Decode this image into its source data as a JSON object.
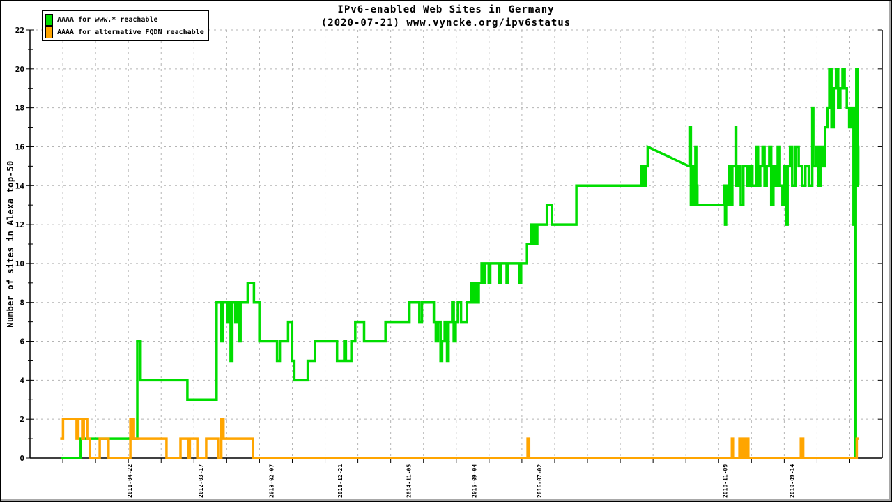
{
  "chart_data": {
    "type": "line",
    "title": "IPv6-enabled Web Sites in Germany",
    "subtitle": "(2020-07-21) www.vyncke.org/ipv6status",
    "ylabel": "Number of sites in Alexa top-50",
    "ylim": [
      0,
      22
    ],
    "y_ticks": [
      0,
      2,
      4,
      6,
      8,
      10,
      12,
      14,
      16,
      18,
      20,
      22
    ],
    "x_domain": [
      "2010-01-16",
      "2020-11-05"
    ],
    "x_ticks": [
      "2011-04-22",
      "2012-03-17",
      "2013-02-07",
      "2013-12-21",
      "2014-11-05",
      "2015-09-04",
      "2016-07-02",
      "2018-11-09",
      "2019-09-14"
    ],
    "grid": true,
    "legend_position": "top-left",
    "series": [
      {
        "name": "AAAA for www.* reachable",
        "color": "#00dd00",
        "style": "steps",
        "points": [
          [
            "2010-06-10",
            0
          ],
          [
            "2010-09-08",
            1
          ],
          [
            "2011-05-28",
            6
          ],
          [
            "2011-06-12",
            4
          ],
          [
            "2012-01-15",
            3
          ],
          [
            "2012-05-29",
            8
          ],
          [
            "2012-06-20",
            6
          ],
          [
            "2012-06-27",
            8
          ],
          [
            "2012-07-18",
            7
          ],
          [
            "2012-07-26",
            8
          ],
          [
            "2012-08-02",
            5
          ],
          [
            "2012-08-10",
            8
          ],
          [
            "2012-08-24",
            7
          ],
          [
            "2012-09-02",
            8
          ],
          [
            "2012-09-10",
            6
          ],
          [
            "2012-09-17",
            8
          ],
          [
            "2012-10-20",
            9
          ],
          [
            "2012-11-18",
            8
          ],
          [
            "2012-12-13",
            6
          ],
          [
            "2013-03-05",
            5
          ],
          [
            "2013-03-18",
            6
          ],
          [
            "2013-04-25",
            7
          ],
          [
            "2013-05-14",
            5
          ],
          [
            "2013-05-24",
            4
          ],
          [
            "2013-07-25",
            5
          ],
          [
            "2013-08-28",
            6
          ],
          [
            "2013-12-08",
            5
          ],
          [
            "2014-01-10",
            6
          ],
          [
            "2014-01-18",
            5
          ],
          [
            "2014-02-12",
            6
          ],
          [
            "2014-03-02",
            7
          ],
          [
            "2014-04-12",
            6
          ],
          [
            "2014-07-20",
            7
          ],
          [
            "2014-11-08",
            8
          ],
          [
            "2014-12-24",
            7
          ],
          [
            "2015-01-05",
            8
          ],
          [
            "2015-03-01",
            7
          ],
          [
            "2015-03-10",
            6
          ],
          [
            "2015-03-20",
            7
          ],
          [
            "2015-04-01",
            5
          ],
          [
            "2015-04-08",
            6
          ],
          [
            "2015-04-20",
            7
          ],
          [
            "2015-05-01",
            5
          ],
          [
            "2015-05-08",
            7
          ],
          [
            "2015-05-25",
            8
          ],
          [
            "2015-06-01",
            6
          ],
          [
            "2015-06-10",
            7
          ],
          [
            "2015-06-20",
            8
          ],
          [
            "2015-07-05",
            7
          ],
          [
            "2015-08-01",
            8
          ],
          [
            "2015-08-20",
            9
          ],
          [
            "2015-08-27",
            8
          ],
          [
            "2015-09-05",
            9
          ],
          [
            "2015-09-15",
            8
          ],
          [
            "2015-09-25",
            9
          ],
          [
            "2015-10-08",
            10
          ],
          [
            "2015-10-14",
            9
          ],
          [
            "2015-10-25",
            10
          ],
          [
            "2015-11-10",
            9
          ],
          [
            "2015-11-17",
            10
          ],
          [
            "2015-12-28",
            9
          ],
          [
            "2016-01-05",
            10
          ],
          [
            "2016-02-01",
            9
          ],
          [
            "2016-02-08",
            10
          ],
          [
            "2016-04-01",
            9
          ],
          [
            "2016-04-08",
            10
          ],
          [
            "2016-05-05",
            11
          ],
          [
            "2016-05-25",
            12
          ],
          [
            "2016-06-01",
            11
          ],
          [
            "2016-06-08",
            12
          ],
          [
            "2016-06-15",
            11
          ],
          [
            "2016-06-22",
            12
          ],
          [
            "2016-08-05",
            13
          ],
          [
            "2016-08-28",
            12
          ],
          [
            "2016-12-20",
            14
          ],
          [
            "2017-10-18",
            15
          ],
          [
            "2017-10-28",
            14
          ],
          [
            "2017-11-08",
            15
          ],
          [
            "2017-11-15",
            16
          ],
          [
            "2018-05-25",
            15,
            "L"
          ],
          [
            "2018-05-28",
            17
          ],
          [
            "2018-06-03",
            13
          ],
          [
            "2018-06-10",
            15
          ],
          [
            "2018-06-16",
            13
          ],
          [
            "2018-06-24",
            16
          ],
          [
            "2018-06-28",
            14
          ],
          [
            "2018-07-03",
            13
          ],
          [
            "2018-10-30",
            13,
            "L"
          ],
          [
            "2018-11-03",
            14
          ],
          [
            "2018-11-08",
            12
          ],
          [
            "2018-11-13",
            14
          ],
          [
            "2018-11-20",
            13
          ],
          [
            "2018-11-28",
            15
          ],
          [
            "2018-12-05",
            13
          ],
          [
            "2018-12-12",
            15
          ],
          [
            "2018-12-27",
            17
          ],
          [
            "2018-12-30",
            14
          ],
          [
            "2019-01-10",
            15
          ],
          [
            "2019-01-20",
            13
          ],
          [
            "2019-02-01",
            15
          ],
          [
            "2019-02-20",
            14
          ],
          [
            "2019-03-01",
            15
          ],
          [
            "2019-03-15",
            14
          ],
          [
            "2019-04-01",
            16
          ],
          [
            "2019-04-10",
            14
          ],
          [
            "2019-04-20",
            15
          ],
          [
            "2019-05-01",
            16
          ],
          [
            "2019-05-10",
            14
          ],
          [
            "2019-05-20",
            15
          ],
          [
            "2019-06-01",
            16
          ],
          [
            "2019-06-10",
            13
          ],
          [
            "2019-06-20",
            15
          ],
          [
            "2019-07-01",
            14
          ],
          [
            "2019-07-10",
            16
          ],
          [
            "2019-07-20",
            14
          ],
          [
            "2019-08-01",
            13
          ],
          [
            "2019-08-10",
            15
          ],
          [
            "2019-08-20",
            12
          ],
          [
            "2019-08-25",
            15
          ],
          [
            "2019-09-05",
            16
          ],
          [
            "2019-09-15",
            14
          ],
          [
            "2019-10-01",
            16
          ],
          [
            "2019-10-15",
            15
          ],
          [
            "2019-11-01",
            14
          ],
          [
            "2019-11-15",
            15
          ],
          [
            "2019-12-01",
            14
          ],
          [
            "2019-12-17",
            18
          ],
          [
            "2019-12-22",
            15
          ],
          [
            "2020-01-05",
            16
          ],
          [
            "2020-01-15",
            14
          ],
          [
            "2020-01-25",
            16
          ],
          [
            "2020-02-05",
            15
          ],
          [
            "2020-02-15",
            17
          ],
          [
            "2020-02-25",
            18
          ],
          [
            "2020-03-05",
            20
          ],
          [
            "2020-03-15",
            17
          ],
          [
            "2020-03-25",
            19
          ],
          [
            "2020-04-05",
            20
          ],
          [
            "2020-04-15",
            18
          ],
          [
            "2020-04-25",
            19
          ],
          [
            "2020-05-05",
            20
          ],
          [
            "2020-05-15",
            19
          ],
          [
            "2020-05-25",
            18
          ],
          [
            "2020-06-05",
            17
          ],
          [
            "2020-06-15",
            18
          ],
          [
            "2020-06-25",
            12
          ],
          [
            "2020-06-28",
            17
          ],
          [
            "2020-07-02",
            0
          ],
          [
            "2020-07-06",
            18
          ],
          [
            "2020-07-08",
            20
          ],
          [
            "2020-07-14",
            16
          ],
          [
            "2020-07-17",
            14
          ],
          [
            "2020-07-21",
            14
          ]
        ]
      },
      {
        "name": "AAAA for alternative FQDN reachable",
        "color": "#ffa500",
        "style": "steps",
        "points": [
          [
            "2010-06-05",
            1
          ],
          [
            "2010-06-18",
            2
          ],
          [
            "2010-08-20",
            1
          ],
          [
            "2010-08-28",
            2
          ],
          [
            "2010-09-15",
            1
          ],
          [
            "2010-09-22",
            2
          ],
          [
            "2010-10-08",
            1
          ],
          [
            "2010-10-20",
            0
          ],
          [
            "2010-12-05",
            1
          ],
          [
            "2011-01-15",
            0
          ],
          [
            "2011-04-26",
            2
          ],
          [
            "2011-05-02",
            1
          ],
          [
            "2011-05-06",
            2
          ],
          [
            "2011-05-12",
            1
          ],
          [
            "2011-10-10",
            0
          ],
          [
            "2011-12-14",
            1
          ],
          [
            "2012-01-20",
            0
          ],
          [
            "2012-01-26",
            1
          ],
          [
            "2012-03-01",
            0
          ],
          [
            "2012-04-11",
            1
          ],
          [
            "2012-06-05",
            0
          ],
          [
            "2012-06-20",
            2
          ],
          [
            "2012-06-30",
            1
          ],
          [
            "2012-11-13",
            0
          ],
          [
            "2016-05-08",
            1
          ],
          [
            "2016-05-15",
            0
          ],
          [
            "2018-12-10",
            1
          ],
          [
            "2018-12-15",
            0
          ],
          [
            "2019-01-14",
            1
          ],
          [
            "2019-01-19",
            0
          ],
          [
            "2019-01-30",
            1
          ],
          [
            "2019-02-04",
            0
          ],
          [
            "2019-02-14",
            1
          ],
          [
            "2019-02-24",
            0
          ],
          [
            "2019-10-25",
            1
          ],
          [
            "2019-11-05",
            0
          ],
          [
            "2020-07-10",
            1
          ],
          [
            "2020-07-21",
            1
          ]
        ]
      }
    ]
  },
  "style": {
    "grid_color": "#b4b4b4",
    "axis_color": "#000000",
    "background": "#ffffff",
    "frame_shadow": "#a8a8a8"
  }
}
